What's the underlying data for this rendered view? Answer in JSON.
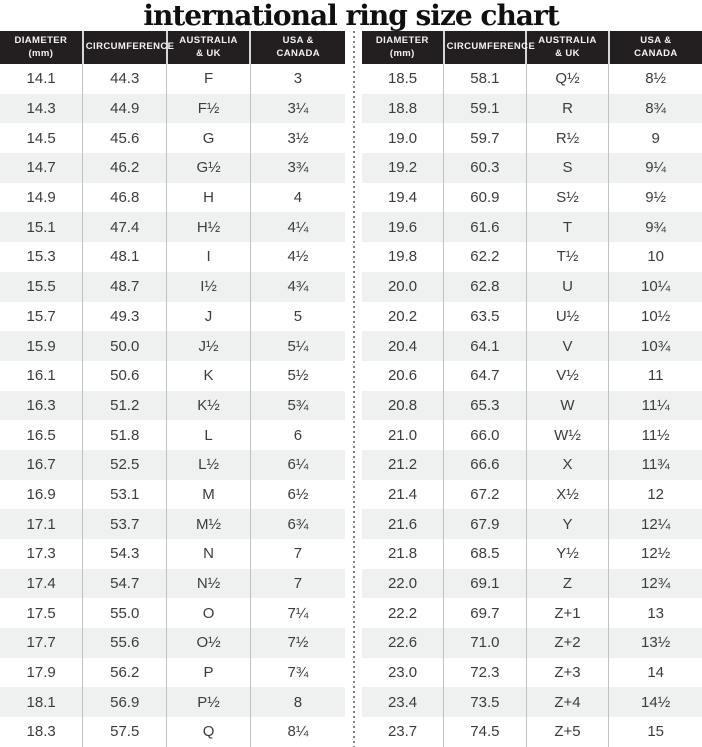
{
  "title": "international ring size chart",
  "colors": {
    "header_bg": "#231f20",
    "header_text": "#f5f4f2",
    "row_alt_bg": "#eff1f0",
    "row_text": "#3c3c3c",
    "column_divider": "#bfc2c1",
    "dotted_divider": "#7c807f"
  },
  "chart_data": {
    "type": "table",
    "title": "international ring size chart",
    "columns": [
      "DIAMETER (mm)",
      "CIRCUMFERENCE",
      "AUSTRALIA & UK",
      "USA & CANADA"
    ],
    "headers": [
      {
        "line1": "DIAMETER",
        "line2": "(mm)"
      },
      {
        "line1": "CIRCUMFERENCE",
        "line2": ""
      },
      {
        "line1": "AUSTRALIA",
        "line2": "& UK"
      },
      {
        "line1": "USA &",
        "line2": "CANADA"
      }
    ],
    "left_rows": [
      [
        "14.1",
        "44.3",
        "F",
        "3"
      ],
      [
        "14.3",
        "44.9",
        "F½",
        "3¼"
      ],
      [
        "14.5",
        "45.6",
        "G",
        "3½"
      ],
      [
        "14.7",
        "46.2",
        "G½",
        "3¾"
      ],
      [
        "14.9",
        "46.8",
        "H",
        "4"
      ],
      [
        "15.1",
        "47.4",
        "H½",
        "4¼"
      ],
      [
        "15.3",
        "48.1",
        "I",
        "4½"
      ],
      [
        "15.5",
        "48.7",
        "I½",
        "4¾"
      ],
      [
        "15.7",
        "49.3",
        "J",
        "5"
      ],
      [
        "15.9",
        "50.0",
        "J½",
        "5¼"
      ],
      [
        "16.1",
        "50.6",
        "K",
        "5½"
      ],
      [
        "16.3",
        "51.2",
        "K½",
        "5¾"
      ],
      [
        "16.5",
        "51.8",
        "L",
        "6"
      ],
      [
        "16.7",
        "52.5",
        "L½",
        "6¼"
      ],
      [
        "16.9",
        "53.1",
        "M",
        "6½"
      ],
      [
        "17.1",
        "53.7",
        "M½",
        "6¾"
      ],
      [
        "17.3",
        "54.3",
        "N",
        "7"
      ],
      [
        "17.4",
        "54.7",
        "N½",
        "7"
      ],
      [
        "17.5",
        "55.0",
        "O",
        "7¼"
      ],
      [
        "17.7",
        "55.6",
        "O½",
        "7½"
      ],
      [
        "17.9",
        "56.2",
        "P",
        "7¾"
      ],
      [
        "18.1",
        "56.9",
        "P½",
        "8"
      ],
      [
        "18.3",
        "57.5",
        "Q",
        "8¼"
      ]
    ],
    "right_rows": [
      [
        "18.5",
        "58.1",
        "Q½",
        "8½"
      ],
      [
        "18.8",
        "59.1",
        "R",
        "8¾"
      ],
      [
        "19.0",
        "59.7",
        "R½",
        "9"
      ],
      [
        "19.2",
        "60.3",
        "S",
        "9¼"
      ],
      [
        "19.4",
        "60.9",
        "S½",
        "9½"
      ],
      [
        "19.6",
        "61.6",
        "T",
        "9¾"
      ],
      [
        "19.8",
        "62.2",
        "T½",
        "10"
      ],
      [
        "20.0",
        "62.8",
        "U",
        "10¼"
      ],
      [
        "20.2",
        "63.5",
        "U½",
        "10½"
      ],
      [
        "20.4",
        "64.1",
        "V",
        "10¾"
      ],
      [
        "20.6",
        "64.7",
        "V½",
        "11"
      ],
      [
        "20.8",
        "65.3",
        "W",
        "11¼"
      ],
      [
        "21.0",
        "66.0",
        "W½",
        "11½"
      ],
      [
        "21.2",
        "66.6",
        "X",
        "11¾"
      ],
      [
        "21.4",
        "67.2",
        "X½",
        "12"
      ],
      [
        "21.6",
        "67.9",
        "Y",
        "12¼"
      ],
      [
        "21.8",
        "68.5",
        "Y½",
        "12½"
      ],
      [
        "22.0",
        "69.1",
        "Z",
        "12¾"
      ],
      [
        "22.2",
        "69.7",
        "Z+1",
        "13"
      ],
      [
        "22.6",
        "71.0",
        "Z+2",
        "13½"
      ],
      [
        "23.0",
        "72.3",
        "Z+3",
        "14"
      ],
      [
        "23.4",
        "73.5",
        "Z+4",
        "14½"
      ],
      [
        "23.7",
        "74.5",
        "Z+5",
        "15"
      ]
    ]
  }
}
